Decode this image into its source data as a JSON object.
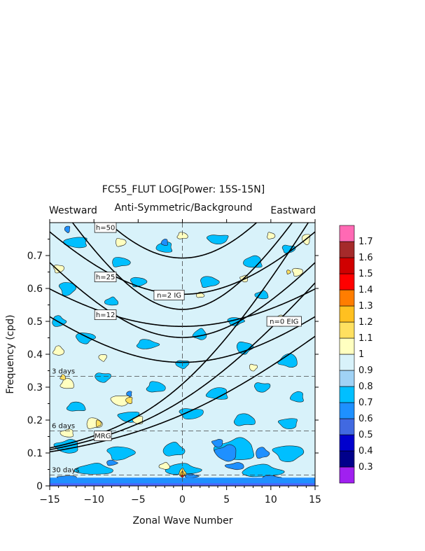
{
  "chart_data": {
    "type": "heatmap",
    "title": "FC55_FLUT LOG[Power: 15S-15N]",
    "subtitle": "Anti-Symmetric/Background",
    "left_label": "Westward",
    "right_label": "Eastward",
    "xlabel": "Zonal Wave Number",
    "ylabel": "Frequency (cpd)",
    "xlim": [
      -15,
      15
    ],
    "ylim": [
      0,
      0.8
    ],
    "x_ticks": [
      -15,
      -10,
      -5,
      0,
      5,
      10,
      15
    ],
    "x_tick_labels": [
      "−15",
      "−10",
      "−5",
      "0",
      "5",
      "10",
      "15"
    ],
    "y_ticks": [
      0,
      0.1,
      0.2,
      0.3,
      0.4,
      0.5,
      0.6,
      0.7
    ],
    "y_tick_labels": [
      "0",
      "0.1",
      "0.2",
      "0.3",
      "0.4",
      "0.5",
      "0.6",
      "0.7"
    ],
    "period_lines": [
      {
        "label": "3 days",
        "freq": 0.3333
      },
      {
        "label": "6 days",
        "freq": 0.1667
      },
      {
        "label": "30 days",
        "freq": 0.0333
      }
    ],
    "curve_labels": [
      {
        "label": "h=50",
        "x": -8.7,
        "y": 0.785
      },
      {
        "label": "h=25",
        "x": -8.7,
        "y": 0.635
      },
      {
        "label": "h=12",
        "x": -8.7,
        "y": 0.52
      },
      {
        "label": "n=2 IG",
        "x": -1.5,
        "y": 0.58
      },
      {
        "label": "n=0 EIG",
        "x": 11.5,
        "y": 0.5
      },
      {
        "label": "MRG",
        "x": -9.0,
        "y": 0.152
      }
    ],
    "colorbar": {
      "levels": [
        "0.3",
        "0.4",
        "0.5",
        "0.6",
        "0.7",
        "0.8",
        "0.9",
        "1",
        "1.1",
        "1.2",
        "1.3",
        "1.4",
        "1.5",
        "1.6",
        "1.7"
      ],
      "colors": [
        "#a020f0",
        "#00008b",
        "#0000cd",
        "#4169e1",
        "#1e90ff",
        "#00bfff",
        "#a0d2f5",
        "#d8f2fa",
        "#ffffc0",
        "#ffe060",
        "#ffc020",
        "#ff7d00",
        "#ff0000",
        "#d00000",
        "#a52a2a",
        "#ff69b4"
      ]
    },
    "background_level": "0.9-1",
    "grid": false,
    "legend": "colorbar-right"
  }
}
